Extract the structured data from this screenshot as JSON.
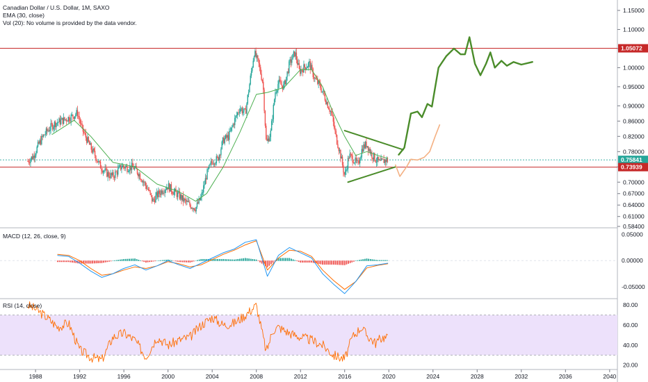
{
  "legend": {
    "main_title": "Canadian Dollar / U.S. Dollar, 1M, SAXO",
    "ema": "EMA (30, close)",
    "vol": "Vol (20): No volume is provided by the data vendor.",
    "macd": "MACD (12, 26, close, 9)",
    "rsi": "RSI (14, close)"
  },
  "colors": {
    "up": "#26a69a",
    "down": "#ef5350",
    "ema": "#4caf50",
    "drawing_green": "#4a8c2a",
    "drawing_orange": "#f4b183",
    "resistance": "#c62828",
    "current": "#26a69a",
    "macd_line": "#2196f3",
    "signal_line": "#ff6d00",
    "rsi_line": "#ff6d00",
    "rsi_band": "#ede1fb"
  },
  "chart_data": [
    {
      "type": "candlestick",
      "title": "Canadian Dollar / U.S. Dollar, 1M, SAXO",
      "x_ticks": [
        "1988",
        "1992",
        "1996",
        "2000",
        "2004",
        "2008",
        "2012",
        "2016",
        "2020",
        "2024",
        "2028",
        "2032",
        "2036",
        "2040"
      ],
      "y_ticks": [
        "1.15000",
        "1.10000",
        "1.05000",
        "1.00000",
        "0.95000",
        "0.90000",
        "0.86000",
        "0.82000",
        "0.78000",
        "0.74000",
        "0.70000",
        "0.67000",
        "0.64000",
        "0.61000",
        "0.58400"
      ],
      "ylim": [
        0.584,
        1.17
      ],
      "price_labels": [
        {
          "value": 1.05072,
          "label": "1.05072",
          "kind": "resistance"
        },
        {
          "value": 0.75841,
          "label": "0.75841",
          "kind": "current"
        },
        {
          "value": 0.73939,
          "label": "0.73939",
          "kind": "support"
        }
      ],
      "price_path": [
        [
          1987.3,
          0.755
        ],
        [
          1987.8,
          0.768
        ],
        [
          1988.3,
          0.8
        ],
        [
          1988.8,
          0.825
        ],
        [
          1989.3,
          0.842
        ],
        [
          1989.8,
          0.855
        ],
        [
          1990.3,
          0.86
        ],
        [
          1990.8,
          0.866
        ],
        [
          1991.3,
          0.872
        ],
        [
          1991.8,
          0.882
        ],
        [
          1992.2,
          0.84
        ],
        [
          1992.6,
          0.815
        ],
        [
          1993.0,
          0.79
        ],
        [
          1993.4,
          0.77
        ],
        [
          1993.8,
          0.745
        ],
        [
          1994.2,
          0.73
        ],
        [
          1994.6,
          0.72
        ],
        [
          1995.0,
          0.715
        ],
        [
          1995.4,
          0.728
        ],
        [
          1995.8,
          0.742
        ],
        [
          1996.3,
          0.738
        ],
        [
          1996.8,
          0.74
        ],
        [
          1997.3,
          0.725
        ],
        [
          1997.8,
          0.7
        ],
        [
          1998.2,
          0.68
        ],
        [
          1998.6,
          0.65
        ],
        [
          1999.0,
          0.665
        ],
        [
          1999.5,
          0.68
        ],
        [
          2000.0,
          0.69
        ],
        [
          2000.5,
          0.675
        ],
        [
          2001.0,
          0.665
        ],
        [
          2001.5,
          0.65
        ],
        [
          2002.0,
          0.64
        ],
        [
          2002.5,
          0.632
        ],
        [
          2003.0,
          0.66
        ],
        [
          2003.5,
          0.72
        ],
        [
          2004.0,
          0.755
        ],
        [
          2004.5,
          0.76
        ],
        [
          2005.0,
          0.81
        ],
        [
          2005.5,
          0.82
        ],
        [
          2006.0,
          0.86
        ],
        [
          2006.5,
          0.895
        ],
        [
          2007.0,
          0.88
        ],
        [
          2007.4,
          0.96
        ],
        [
          2007.8,
          1.04
        ],
        [
          2008.2,
          1.01
        ],
        [
          2008.6,
          0.96
        ],
        [
          2008.9,
          0.8
        ],
        [
          2009.3,
          0.83
        ],
        [
          2009.7,
          0.935
        ],
        [
          2010.0,
          0.96
        ],
        [
          2010.5,
          0.95
        ],
        [
          2011.0,
          1.01
        ],
        [
          2011.5,
          1.04
        ],
        [
          2011.9,
          0.99
        ],
        [
          2012.3,
          1.0
        ],
        [
          2012.8,
          1.01
        ],
        [
          2013.3,
          0.97
        ],
        [
          2013.8,
          0.95
        ],
        [
          2014.3,
          0.915
        ],
        [
          2014.8,
          0.88
        ],
        [
          2015.2,
          0.82
        ],
        [
          2015.6,
          0.775
        ],
        [
          2016.0,
          0.715
        ],
        [
          2016.4,
          0.77
        ],
        [
          2016.8,
          0.76
        ],
        [
          2017.2,
          0.745
        ],
        [
          2017.6,
          0.79
        ],
        [
          2018.0,
          0.8
        ],
        [
          2018.4,
          0.775
        ],
        [
          2018.8,
          0.76
        ],
        [
          2019.2,
          0.75
        ],
        [
          2019.6,
          0.757
        ],
        [
          2019.9,
          0.758
        ]
      ],
      "ema_path": [
        [
          1989.5,
          0.825
        ],
        [
          1991.5,
          0.862
        ],
        [
          1993.0,
          0.82
        ],
        [
          1995.0,
          0.752
        ],
        [
          1997.0,
          0.74
        ],
        [
          1999.0,
          0.695
        ],
        [
          2001.0,
          0.675
        ],
        [
          2002.5,
          0.65
        ],
        [
          2003.5,
          0.67
        ],
        [
          2005.0,
          0.74
        ],
        [
          2006.5,
          0.83
        ],
        [
          2008.0,
          0.93
        ],
        [
          2009.0,
          0.935
        ],
        [
          2010.5,
          0.948
        ],
        [
          2012.0,
          0.995
        ],
        [
          2013.0,
          0.995
        ],
        [
          2014.0,
          0.95
        ],
        [
          2015.0,
          0.88
        ],
        [
          2016.0,
          0.82
        ],
        [
          2017.0,
          0.77
        ],
        [
          2018.0,
          0.78
        ],
        [
          2019.0,
          0.77
        ],
        [
          2019.9,
          0.762
        ]
      ],
      "drawing_green": [
        [
          2020.9,
          0.772
        ],
        [
          2021.4,
          0.79
        ],
        [
          2022.0,
          0.88
        ],
        [
          2022.6,
          0.885
        ],
        [
          2023.0,
          0.87
        ],
        [
          2023.5,
          0.905
        ],
        [
          2023.9,
          0.898
        ],
        [
          2024.5,
          1.0
        ],
        [
          2025.2,
          1.03
        ],
        [
          2025.9,
          1.05
        ],
        [
          2026.5,
          1.035
        ],
        [
          2026.9,
          1.035
        ],
        [
          2027.3,
          1.08
        ],
        [
          2027.8,
          1.01
        ],
        [
          2028.3,
          0.98
        ],
        [
          2028.8,
          1.01
        ],
        [
          2029.2,
          1.04
        ],
        [
          2029.6,
          1.0
        ],
        [
          2030.2,
          1.018
        ],
        [
          2030.7,
          1.005
        ],
        [
          2031.3,
          1.015
        ],
        [
          2032.0,
          1.008
        ],
        [
          2033.0,
          1.015
        ]
      ],
      "drawing_orange": [
        [
          2020.6,
          0.745
        ],
        [
          2021.0,
          0.715
        ],
        [
          2021.6,
          0.74
        ],
        [
          2022.0,
          0.76
        ],
        [
          2022.6,
          0.758
        ],
        [
          2023.2,
          0.765
        ],
        [
          2023.7,
          0.78
        ],
        [
          2024.2,
          0.82
        ],
        [
          2024.6,
          0.85
        ]
      ],
      "triangle": [
        {
          "from": [
            2016.0,
            0.835
          ],
          "to": [
            2021.3,
            0.785
          ]
        },
        {
          "from": [
            2016.3,
            0.7
          ],
          "to": [
            2020.6,
            0.74
          ]
        }
      ]
    },
    {
      "type": "line",
      "title": "MACD (12, 26, close, 9)",
      "y_ticks": [
        "0.05000",
        "0.00000",
        "-0.05000"
      ],
      "ylim": [
        -0.07,
        0.06
      ],
      "macd_path": [
        [
          1990,
          0.01
        ],
        [
          1991,
          0.008
        ],
        [
          1992,
          -0.005
        ],
        [
          1993,
          -0.02
        ],
        [
          1994,
          -0.032
        ],
        [
          1995,
          -0.025
        ],
        [
          1996,
          -0.015
        ],
        [
          1997,
          -0.008
        ],
        [
          1998,
          -0.018
        ],
        [
          1999,
          -0.01
        ],
        [
          2000,
          0.0
        ],
        [
          2001,
          -0.008
        ],
        [
          2002,
          -0.015
        ],
        [
          2003,
          -0.005
        ],
        [
          2004,
          0.005
        ],
        [
          2005,
          0.015
        ],
        [
          2006,
          0.022
        ],
        [
          2007,
          0.035
        ],
        [
          2008,
          0.04
        ],
        [
          2009,
          -0.03
        ],
        [
          2010,
          0.01
        ],
        [
          2011,
          0.025
        ],
        [
          2012,
          0.015
        ],
        [
          2013,
          0.005
        ],
        [
          2014,
          -0.025
        ],
        [
          2015,
          -0.045
        ],
        [
          2016,
          -0.063
        ],
        [
          2017,
          -0.04
        ],
        [
          2018,
          -0.01
        ],
        [
          2019,
          -0.008
        ],
        [
          2019.9,
          -0.005
        ]
      ],
      "signal_path": [
        [
          1990,
          0.012
        ],
        [
          1991,
          0.01
        ],
        [
          1992,
          0.0
        ],
        [
          1993,
          -0.015
        ],
        [
          1994,
          -0.028
        ],
        [
          1995,
          -0.025
        ],
        [
          1996,
          -0.018
        ],
        [
          1997,
          -0.012
        ],
        [
          1998,
          -0.015
        ],
        [
          1999,
          -0.01
        ],
        [
          2000,
          -0.002
        ],
        [
          2001,
          -0.006
        ],
        [
          2002,
          -0.012
        ],
        [
          2003,
          -0.008
        ],
        [
          2004,
          0.002
        ],
        [
          2005,
          0.012
        ],
        [
          2006,
          0.02
        ],
        [
          2007,
          0.03
        ],
        [
          2008,
          0.038
        ],
        [
          2009,
          -0.018
        ],
        [
          2010,
          0.005
        ],
        [
          2011,
          0.02
        ],
        [
          2012,
          0.018
        ],
        [
          2013,
          0.008
        ],
        [
          2014,
          -0.018
        ],
        [
          2015,
          -0.038
        ],
        [
          2016,
          -0.055
        ],
        [
          2017,
          -0.04
        ],
        [
          2018,
          -0.014
        ],
        [
          2019,
          -0.009
        ],
        [
          2019.9,
          -0.006
        ]
      ]
    },
    {
      "type": "line",
      "title": "RSI (14, close)",
      "y_ticks": [
        "80.00",
        "60.00",
        "40.00",
        "20.00"
      ],
      "ylim": [
        17,
        85
      ],
      "band": [
        30,
        70
      ],
      "rsi_path": [
        [
          1987.3,
          80
        ],
        [
          1988,
          76
        ],
        [
          1989,
          68
        ],
        [
          1990,
          58
        ],
        [
          1991,
          62
        ],
        [
          1992,
          35
        ],
        [
          1993,
          28
        ],
        [
          1994,
          25
        ],
        [
          1995,
          48
        ],
        [
          1996,
          52
        ],
        [
          1997,
          45
        ],
        [
          1998,
          28
        ],
        [
          1999,
          48
        ],
        [
          2000,
          40
        ],
        [
          2001,
          45
        ],
        [
          2002,
          48
        ],
        [
          2003,
          60
        ],
        [
          2004,
          68
        ],
        [
          2005,
          60
        ],
        [
          2006,
          62
        ],
        [
          2007,
          70
        ],
        [
          2008,
          80
        ],
        [
          2008.9,
          33
        ],
        [
          2009.5,
          55
        ],
        [
          2010,
          58
        ],
        [
          2011,
          52
        ],
        [
          2012,
          48
        ],
        [
          2013,
          45
        ],
        [
          2014,
          40
        ],
        [
          2015,
          30
        ],
        [
          2016,
          26
        ],
        [
          2016.7,
          48
        ],
        [
          2017.5,
          58
        ],
        [
          2018,
          50
        ],
        [
          2018.8,
          42
        ],
        [
          2019.4,
          48
        ],
        [
          2019.9,
          47
        ]
      ]
    }
  ]
}
